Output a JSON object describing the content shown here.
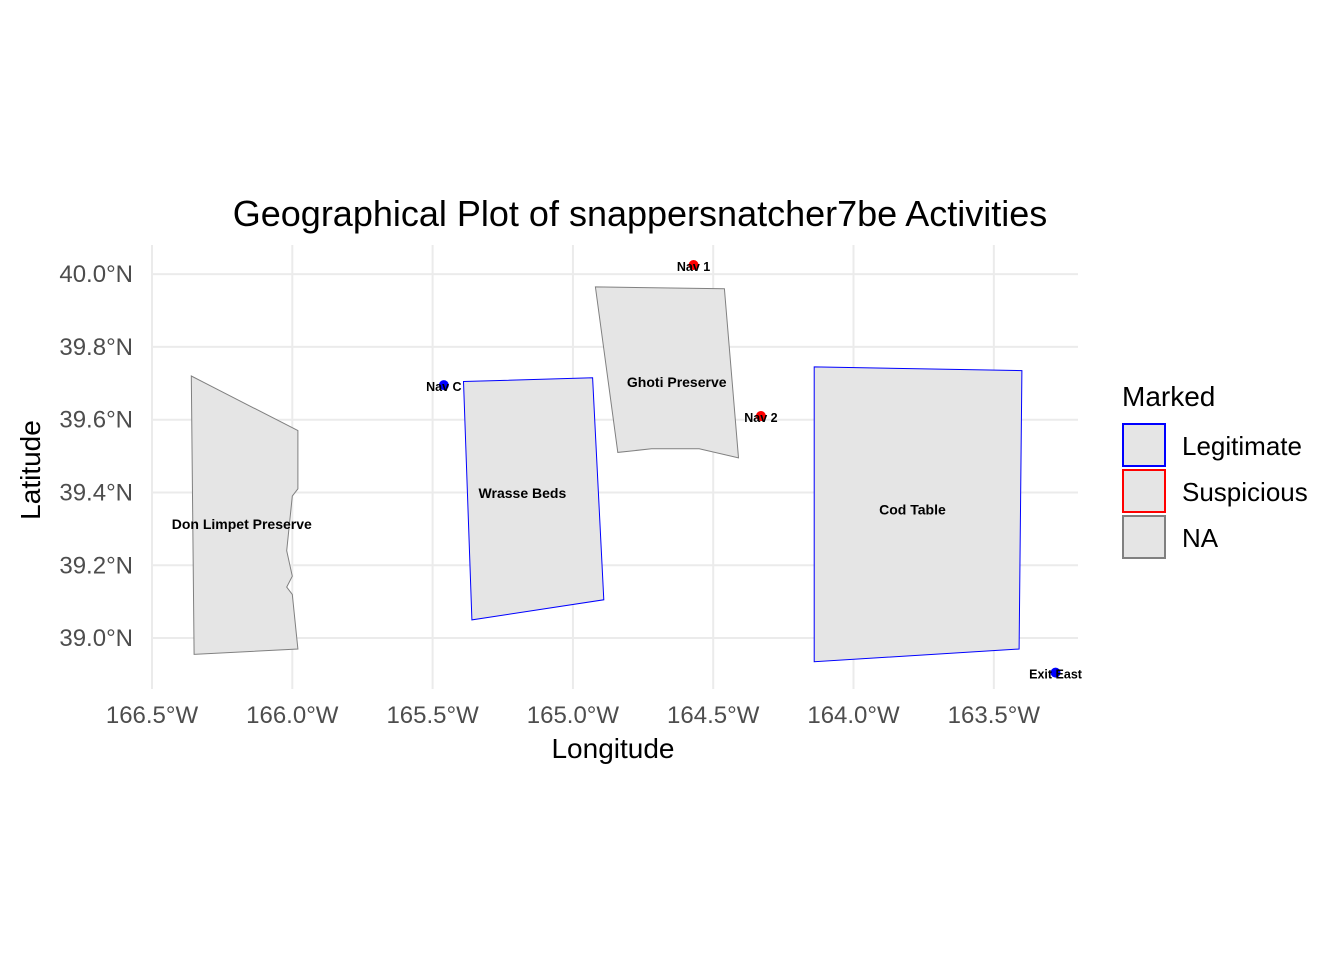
{
  "chart_data": {
    "type": "map",
    "title": "Geographical Plot of snappersnatcher7be Activities",
    "xlabel": "Longitude",
    "ylabel": "Latitude",
    "xlim": [
      -166.5,
      -163.2
    ],
    "ylim": [
      38.86,
      40.08
    ],
    "x_ticks": [
      {
        "value": -166.5,
        "label": "166.5°W"
      },
      {
        "value": -166.0,
        "label": "166.0°W"
      },
      {
        "value": -165.5,
        "label": "165.5°W"
      },
      {
        "value": -165.0,
        "label": "165.0°W"
      },
      {
        "value": -164.5,
        "label": "164.5°W"
      },
      {
        "value": -164.0,
        "label": "164.0°W"
      },
      {
        "value": -163.5,
        "label": "163.5°W"
      }
    ],
    "y_ticks": [
      {
        "value": 39.0,
        "label": "39.0°N"
      },
      {
        "value": 39.2,
        "label": "39.2°N"
      },
      {
        "value": 39.4,
        "label": "39.4°N"
      },
      {
        "value": 39.6,
        "label": "39.6°N"
      },
      {
        "value": 39.8,
        "label": "39.8°N"
      },
      {
        "value": 40.0,
        "label": "40.0°N"
      }
    ],
    "grid": true,
    "legend": {
      "title": "Marked",
      "placement": "right",
      "entries": [
        {
          "label": "Legitimate",
          "color": "#0000ff"
        },
        {
          "label": "Suspicious",
          "color": "#ff0000"
        },
        {
          "label": "NA",
          "color": "#808080"
        }
      ]
    },
    "regions": [
      {
        "name": "Don Limpet Preserve",
        "marked": "NA",
        "label_at": [
          -166.18,
          39.3
        ],
        "coords": [
          [
            -166.36,
            39.72
          ],
          [
            -165.98,
            39.57
          ],
          [
            -165.98,
            39.41
          ],
          [
            -166.0,
            39.39
          ],
          [
            -166.02,
            39.24
          ],
          [
            -166.0,
            39.17
          ],
          [
            -166.02,
            39.14
          ],
          [
            -166.0,
            39.12
          ],
          [
            -165.98,
            38.97
          ],
          [
            -166.35,
            38.955
          ]
        ]
      },
      {
        "name": "Wrasse Beds",
        "marked": "Legitimate",
        "label_at": [
          -165.18,
          39.385
        ],
        "coords": [
          [
            -165.39,
            39.705
          ],
          [
            -164.93,
            39.715
          ],
          [
            -164.89,
            39.105
          ],
          [
            -165.36,
            39.05
          ]
        ]
      },
      {
        "name": "Ghoti Preserve",
        "marked": "NA",
        "label_at": [
          -164.63,
          39.69
        ],
        "coords": [
          [
            -164.92,
            39.965
          ],
          [
            -164.46,
            39.96
          ],
          [
            -164.41,
            39.495
          ],
          [
            -164.55,
            39.52
          ],
          [
            -164.72,
            39.52
          ],
          [
            -164.84,
            39.51
          ]
        ]
      },
      {
        "name": "Cod Table",
        "marked": "Legitimate",
        "label_at": [
          -163.79,
          39.34
        ],
        "coords": [
          [
            -164.14,
            39.745
          ],
          [
            -163.4,
            39.735
          ],
          [
            -163.41,
            38.97
          ],
          [
            -164.14,
            38.935
          ]
        ]
      }
    ],
    "points": [
      {
        "name": "Nav 1",
        "marked": "Suspicious",
        "lon": -164.57,
        "lat": 40.025
      },
      {
        "name": "Nav C",
        "marked": "Legitimate",
        "lon": -165.46,
        "lat": 39.695
      },
      {
        "name": "Nav 2",
        "marked": "Suspicious",
        "lon": -164.33,
        "lat": 39.61
      },
      {
        "name": "Exit East",
        "marked": "Legitimate",
        "lon": -163.28,
        "lat": 38.905
      }
    ]
  }
}
